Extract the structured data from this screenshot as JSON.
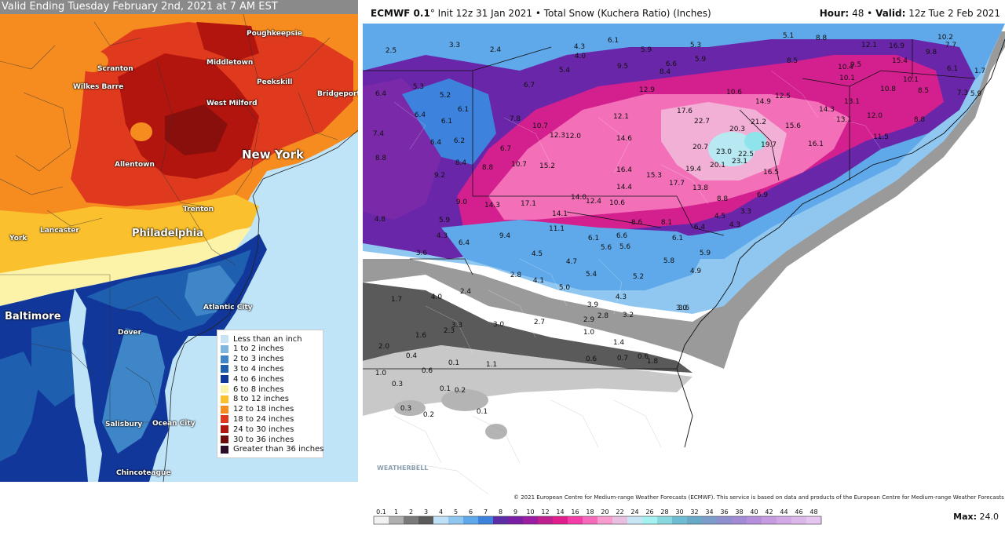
{
  "left_map": {
    "title": "Valid Ending Tuesday February 2nd, 2021 at 7 AM EST",
    "cities": [
      {
        "name": "Poughkeepsie"
      },
      {
        "name": "Scranton"
      },
      {
        "name": "Middletown"
      },
      {
        "name": "Wilkes Barre"
      },
      {
        "name": "Peekskill"
      },
      {
        "name": "Bridgeport"
      },
      {
        "name": "West Milford"
      },
      {
        "name": "New York"
      },
      {
        "name": "Allentown"
      },
      {
        "name": "Trenton"
      },
      {
        "name": "York"
      },
      {
        "name": "Lancaster"
      },
      {
        "name": "Philadelphia"
      },
      {
        "name": "Atlantic City"
      },
      {
        "name": "Baltimore"
      },
      {
        "name": "Dover"
      },
      {
        "name": "Salisbury"
      },
      {
        "name": "Ocean City"
      },
      {
        "name": "Chincoteague"
      }
    ],
    "legend": [
      {
        "label": "Less than an inch",
        "color": "#c6e2f5"
      },
      {
        "label": "1 to 2 inches",
        "color": "#7fb6df"
      },
      {
        "label": "2 to 3 inches",
        "color": "#3f86c8"
      },
      {
        "label": "3 to 4 inches",
        "color": "#1f5fb0"
      },
      {
        "label": "4 to 6 inches",
        "color": "#12379a"
      },
      {
        "label": "6 to 8 inches",
        "color": "#fdf3a8"
      },
      {
        "label": "8 to 12 inches",
        "color": "#fbc02d"
      },
      {
        "label": "12 to 18 inches",
        "color": "#f68c1f"
      },
      {
        "label": "18 to 24 inches",
        "color": "#e03a1e"
      },
      {
        "label": "24 to 30 inches",
        "color": "#b2140e"
      },
      {
        "label": "30 to 36 inches",
        "color": "#6e0b0b"
      },
      {
        "label": "Greater than 36 inches",
        "color": "#2c0a2a"
      }
    ]
  },
  "right_map": {
    "model": "ECMWF 0.1",
    "degree": "°",
    "init": "Init 12z 31 Jan 2021",
    "bullet": "•",
    "product": "Total Snow (Kuchera Ratio) (Inches)",
    "hour_label": "Hour:",
    "hour_value": "48",
    "valid_label": "Valid:",
    "valid_value": "12z Tue 2 Feb 2021",
    "copyright": "© 2021 European Centre for Medium-range Weather Forecasts (ECMWF). This service is based on data and products of the European Centre for Medium-range Weather Forecasts (ECMWF).",
    "watermark": "WEATHERBELL",
    "max_label": "Max:",
    "max_value": "24.0",
    "colorbar_ticks": [
      "0.1",
      "1",
      "2",
      "3",
      "4",
      "5",
      "6",
      "7",
      "8",
      "9",
      "10",
      "12",
      "14",
      "16",
      "18",
      "20",
      "22",
      "24",
      "26",
      "28",
      "30",
      "32",
      "34",
      "36",
      "38",
      "40",
      "42",
      "44",
      "46",
      "48"
    ],
    "colorbar_colors": [
      "#f2f2f2",
      "#b0b0b0",
      "#7a7a7a",
      "#5a5a5a",
      "#bfe1f7",
      "#8fc7f1",
      "#5fa9ea",
      "#3d82dc",
      "#5b2ea6",
      "#7a1fa3",
      "#9a1ea1",
      "#c0208f",
      "#e01e8c",
      "#f33ea8",
      "#f76abb",
      "#f79ccd",
      "#e8bfe0",
      "#c8e5f3",
      "#a5f1f1",
      "#88d8e0",
      "#6cbcd3",
      "#68a9c7",
      "#7b9bc9",
      "#8f8fd0",
      "#a38ad6",
      "#b58fdc",
      "#c69be1",
      "#d2a8e5",
      "#dcb7ea",
      "#e4c6ee"
    ],
    "values": [
      {
        "v": "2.5"
      },
      {
        "v": "3.3"
      },
      {
        "v": "2.4"
      },
      {
        "v": "6.1"
      },
      {
        "v": "4.3"
      },
      {
        "v": "4.0"
      },
      {
        "v": "5.9"
      },
      {
        "v": "5.3"
      },
      {
        "v": "5.1"
      },
      {
        "v": "8.8"
      },
      {
        "v": "10.2"
      },
      {
        "v": "5.4"
      },
      {
        "v": "9.5"
      },
      {
        "v": "6.6"
      },
      {
        "v": "8.4"
      },
      {
        "v": "5.9"
      },
      {
        "v": "8.5"
      },
      {
        "v": "12.1"
      },
      {
        "v": "16.9"
      },
      {
        "v": "9.8"
      },
      {
        "v": "7.7"
      },
      {
        "v": "5.3"
      },
      {
        "v": "6.7"
      },
      {
        "v": "12.9"
      },
      {
        "v": "10.6"
      },
      {
        "v": "12.5"
      },
      {
        "v": "15.4"
      },
      {
        "v": "10.4"
      },
      {
        "v": "9.5"
      },
      {
        "v": "6.1"
      },
      {
        "v": "1.7"
      },
      {
        "v": "6.4"
      },
      {
        "v": "5.2"
      },
      {
        "v": "6.1"
      },
      {
        "v": "14.9"
      },
      {
        "v": "14.3"
      },
      {
        "v": "13.1"
      },
      {
        "v": "10.1"
      },
      {
        "v": "10.8"
      },
      {
        "v": "10.1"
      },
      {
        "v": "8.5"
      },
      {
        "v": "7.3"
      },
      {
        "v": "5.9"
      },
      {
        "v": "6.4"
      },
      {
        "v": "6.1"
      },
      {
        "v": "7.8"
      },
      {
        "v": "12.1"
      },
      {
        "v": "17.6"
      },
      {
        "v": "22.7"
      },
      {
        "v": "21.2"
      },
      {
        "v": "15.6"
      },
      {
        "v": "13.1"
      },
      {
        "v": "12.0"
      },
      {
        "v": "8.8"
      },
      {
        "v": "7.4"
      },
      {
        "v": "6.2"
      },
      {
        "v": "10.7"
      },
      {
        "v": "12.3"
      },
      {
        "v": "12.0"
      },
      {
        "v": "14.6"
      },
      {
        "v": "20.3"
      },
      {
        "v": "19.7"
      },
      {
        "v": "16.1"
      },
      {
        "v": "11.5"
      },
      {
        "v": "6.4"
      },
      {
        "v": "6.7"
      },
      {
        "v": "20.7"
      },
      {
        "v": "23.0"
      },
      {
        "v": "22.5"
      },
      {
        "v": "23.1"
      },
      {
        "v": "8.8"
      },
      {
        "v": "8.4"
      },
      {
        "v": "8.8"
      },
      {
        "v": "10.7"
      },
      {
        "v": "15.2"
      },
      {
        "v": "16.4"
      },
      {
        "v": "15.3"
      },
      {
        "v": "19.4"
      },
      {
        "v": "20.1"
      },
      {
        "v": "16.5"
      },
      {
        "v": "9.2"
      },
      {
        "v": "17.7"
      },
      {
        "v": "14.4"
      },
      {
        "v": "13.8"
      },
      {
        "v": "8.8"
      },
      {
        "v": "6.9"
      },
      {
        "v": "9.0"
      },
      {
        "v": "14.3"
      },
      {
        "v": "17.1"
      },
      {
        "v": "14.0"
      },
      {
        "v": "12.4"
      },
      {
        "v": "10.6"
      },
      {
        "v": "14.1"
      },
      {
        "v": "4.5"
      },
      {
        "v": "3.3"
      },
      {
        "v": "4.8"
      },
      {
        "v": "5.9"
      },
      {
        "v": "11.1"
      },
      {
        "v": "8.6"
      },
      {
        "v": "8.1"
      },
      {
        "v": "6.4"
      },
      {
        "v": "4.3"
      },
      {
        "v": "4.3"
      },
      {
        "v": "6.4"
      },
      {
        "v": "9.4"
      },
      {
        "v": "6.1"
      },
      {
        "v": "6.6"
      },
      {
        "v": "6.1"
      },
      {
        "v": "5.9"
      },
      {
        "v": "3.6"
      },
      {
        "v": "4.5"
      },
      {
        "v": "5.6"
      },
      {
        "v": "5.6"
      },
      {
        "v": "5.8"
      },
      {
        "v": "4.7"
      },
      {
        "v": "2.8"
      },
      {
        "v": "5.4"
      },
      {
        "v": "5.2"
      },
      {
        "v": "4.9"
      },
      {
        "v": "2.4"
      },
      {
        "v": "4.1"
      },
      {
        "v": "5.0"
      },
      {
        "v": "4.3"
      },
      {
        "v": "3.0"
      },
      {
        "v": "1.7"
      },
      {
        "v": "4.0"
      },
      {
        "v": "3.9"
      },
      {
        "v": "3.6"
      },
      {
        "v": "3.3"
      },
      {
        "v": "3.0"
      },
      {
        "v": "2.7"
      },
      {
        "v": "2.9"
      },
      {
        "v": "2.8"
      },
      {
        "v": "3.2"
      },
      {
        "v": "2.3"
      },
      {
        "v": "1.6"
      },
      {
        "v": "1.0"
      },
      {
        "v": "1.4"
      },
      {
        "v": "2.0"
      },
      {
        "v": "0.4"
      },
      {
        "v": "0.6"
      },
      {
        "v": "0.7"
      },
      {
        "v": "0.6"
      },
      {
        "v": "1.8"
      },
      {
        "v": "0.1"
      },
      {
        "v": "1.1"
      },
      {
        "v": "1.0"
      },
      {
        "v": "0.6"
      },
      {
        "v": "0.3"
      },
      {
        "v": "0.1"
      },
      {
        "v": "0.2"
      },
      {
        "v": "0.3"
      },
      {
        "v": "0.2"
      },
      {
        "v": "0.1"
      }
    ]
  }
}
